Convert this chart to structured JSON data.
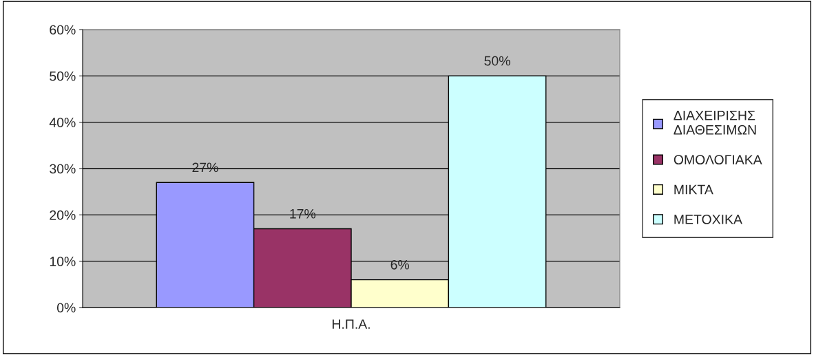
{
  "chart_data": {
    "type": "bar",
    "categories": [
      "Η.Π.Α."
    ],
    "series": [
      {
        "name": "ΔΙΑΧΕΙΡΙΣΗΣ\nΔΙΑΘΕΣΙΜΩΝ",
        "color": "#9999ff",
        "values": [
          27
        ],
        "value_labels": [
          "27%"
        ]
      },
      {
        "name": "ΟΜΟΛΟΓΙΑΚΑ",
        "color": "#993366",
        "values": [
          17
        ],
        "value_labels": [
          "17%"
        ]
      },
      {
        "name": "ΜΙΚΤΑ",
        "color": "#ffffcc",
        "values": [
          6
        ],
        "value_labels": [
          "6%"
        ]
      },
      {
        "name": "ΜΕΤΟΧΙΚΑ",
        "color": "#ccffff",
        "values": [
          50
        ],
        "value_labels": [
          "50%"
        ]
      }
    ],
    "ylim": [
      0,
      60
    ],
    "yticks": [
      {
        "value": 0,
        "label": "0%"
      },
      {
        "value": 10,
        "label": "10%"
      },
      {
        "value": 20,
        "label": "20%"
      },
      {
        "value": 30,
        "label": "30%"
      },
      {
        "value": 40,
        "label": "40%"
      },
      {
        "value": 50,
        "label": "50%"
      },
      {
        "value": 60,
        "label": "60%"
      }
    ],
    "grid": "y",
    "legend": "right"
  }
}
